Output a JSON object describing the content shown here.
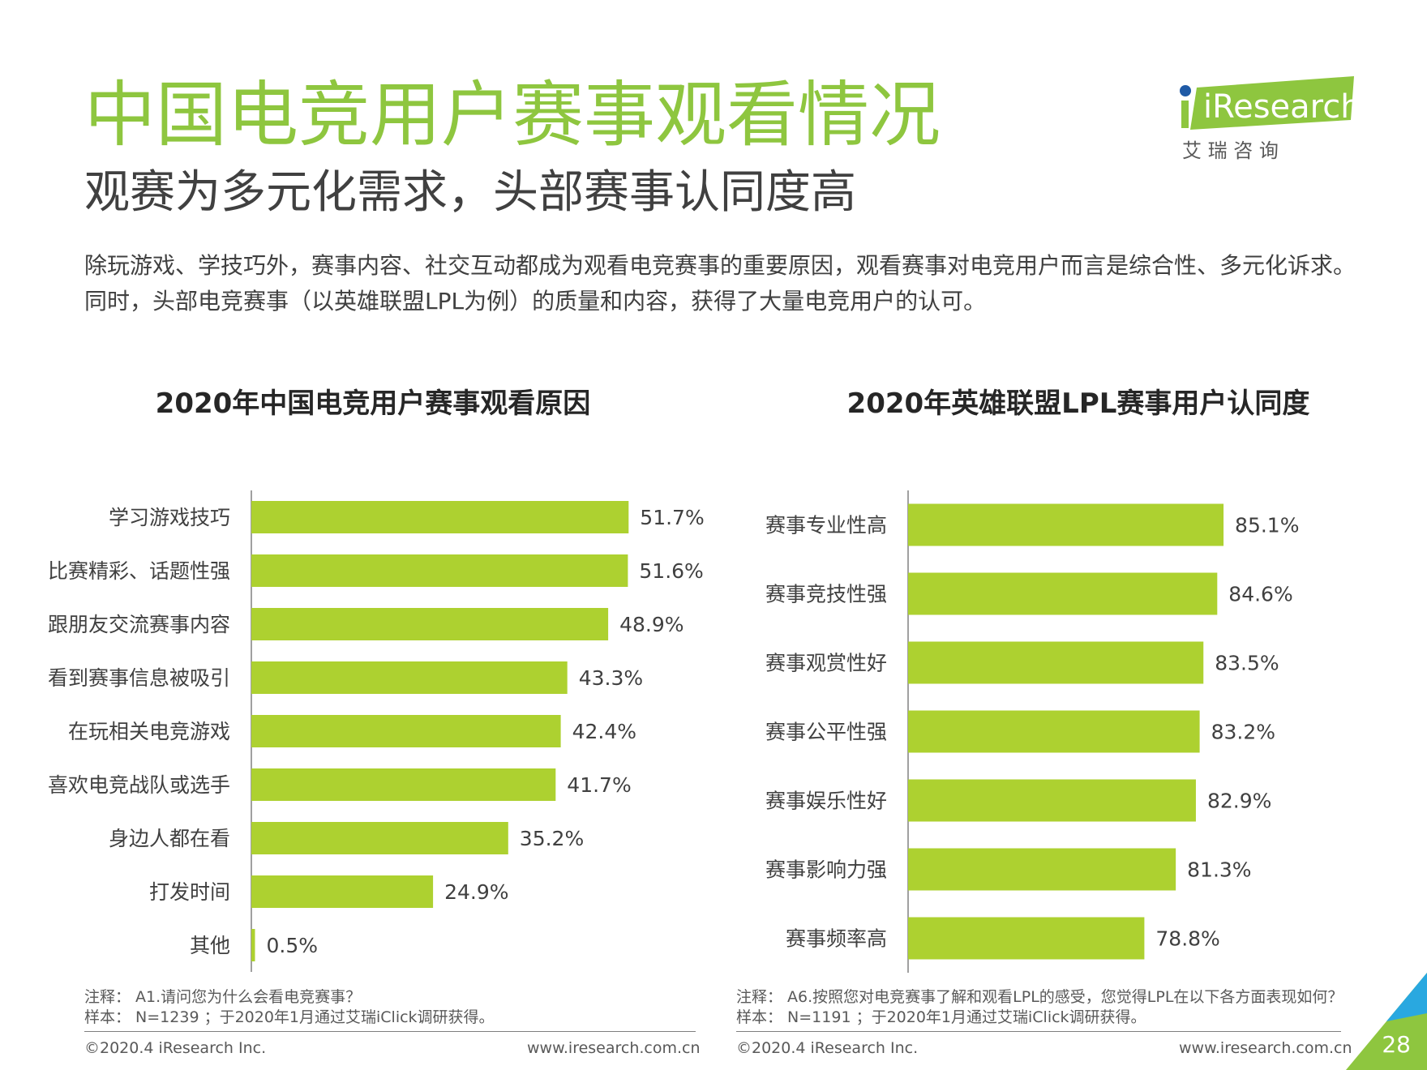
{
  "header": {
    "title": "中国电竞用户赛事观看情况",
    "subtitle": "观赛为多元化需求，头部赛事认同度高",
    "intro": "除玩游戏、学技巧外，赛事内容、社交互动都成为观看电竞赛事的重要原因，观看赛事对电竞用户而言是综合性、多元化诉求。同时，头部电竞赛事（以英雄联盟LPL为例）的质量和内容，获得了大量电竞用户的认可。"
  },
  "logo": {
    "text": "iResearch",
    "cn": "艾 瑞 咨 询"
  },
  "colors": {
    "title": "#8ec63f",
    "bar": "#add130",
    "text": "#404040"
  },
  "chart_data": [
    {
      "type": "bar",
      "orientation": "horizontal",
      "title": "2020年中国电竞用户赛事观看原因",
      "categories": [
        "学习游戏技巧",
        "比赛精彩、话题性强",
        "跟朋友交流赛事内容",
        "看到赛事信息被吸引",
        "在玩相关电竞游戏",
        "喜欢电竞战队或选手",
        "身边人都在看",
        "打发时间",
        "其他"
      ],
      "values": [
        51.7,
        51.6,
        48.9,
        43.3,
        42.4,
        41.7,
        35.2,
        24.9,
        0.5
      ],
      "labels": [
        "51.7%",
        "51.6%",
        "48.9%",
        "43.3%",
        "42.4%",
        "41.7%",
        "35.2%",
        "24.9%",
        "0.5%"
      ],
      "unit": "%",
      "xlim": [
        0,
        60
      ]
    },
    {
      "type": "bar",
      "orientation": "horizontal",
      "title": "2020年英雄联盟LPL赛事用户认同度",
      "categories": [
        "赛事专业性高",
        "赛事竞技性强",
        "赛事观赏性好",
        "赛事公平性强",
        "赛事娱乐性好",
        "赛事影响力强",
        "赛事频率高"
      ],
      "values": [
        85.1,
        84.6,
        83.5,
        83.2,
        82.9,
        81.3,
        78.8
      ],
      "labels": [
        "85.1%",
        "84.6%",
        "83.5%",
        "83.2%",
        "82.9%",
        "81.3%",
        "78.8%"
      ],
      "unit": "%",
      "xlim": [
        60,
        90
      ]
    }
  ],
  "notes": {
    "left": {
      "note": "注释： A1.请问您为什么会看电竞赛事？",
      "sample": "样本： N=1239 ；于2020年1月通过艾瑞iClick调研获得。"
    },
    "right": {
      "note": "注释： A6.按照您对电竞赛事了解和观看LPL的感受，您觉得LPL在以下各方面表现如何？",
      "sample": "样本： N=1191 ；于2020年1月通过艾瑞iClick调研获得。"
    }
  },
  "footer": {
    "copyright": "©2020.4 iResearch Inc.",
    "url": "www.iresearch.com.cn",
    "page": "28"
  }
}
